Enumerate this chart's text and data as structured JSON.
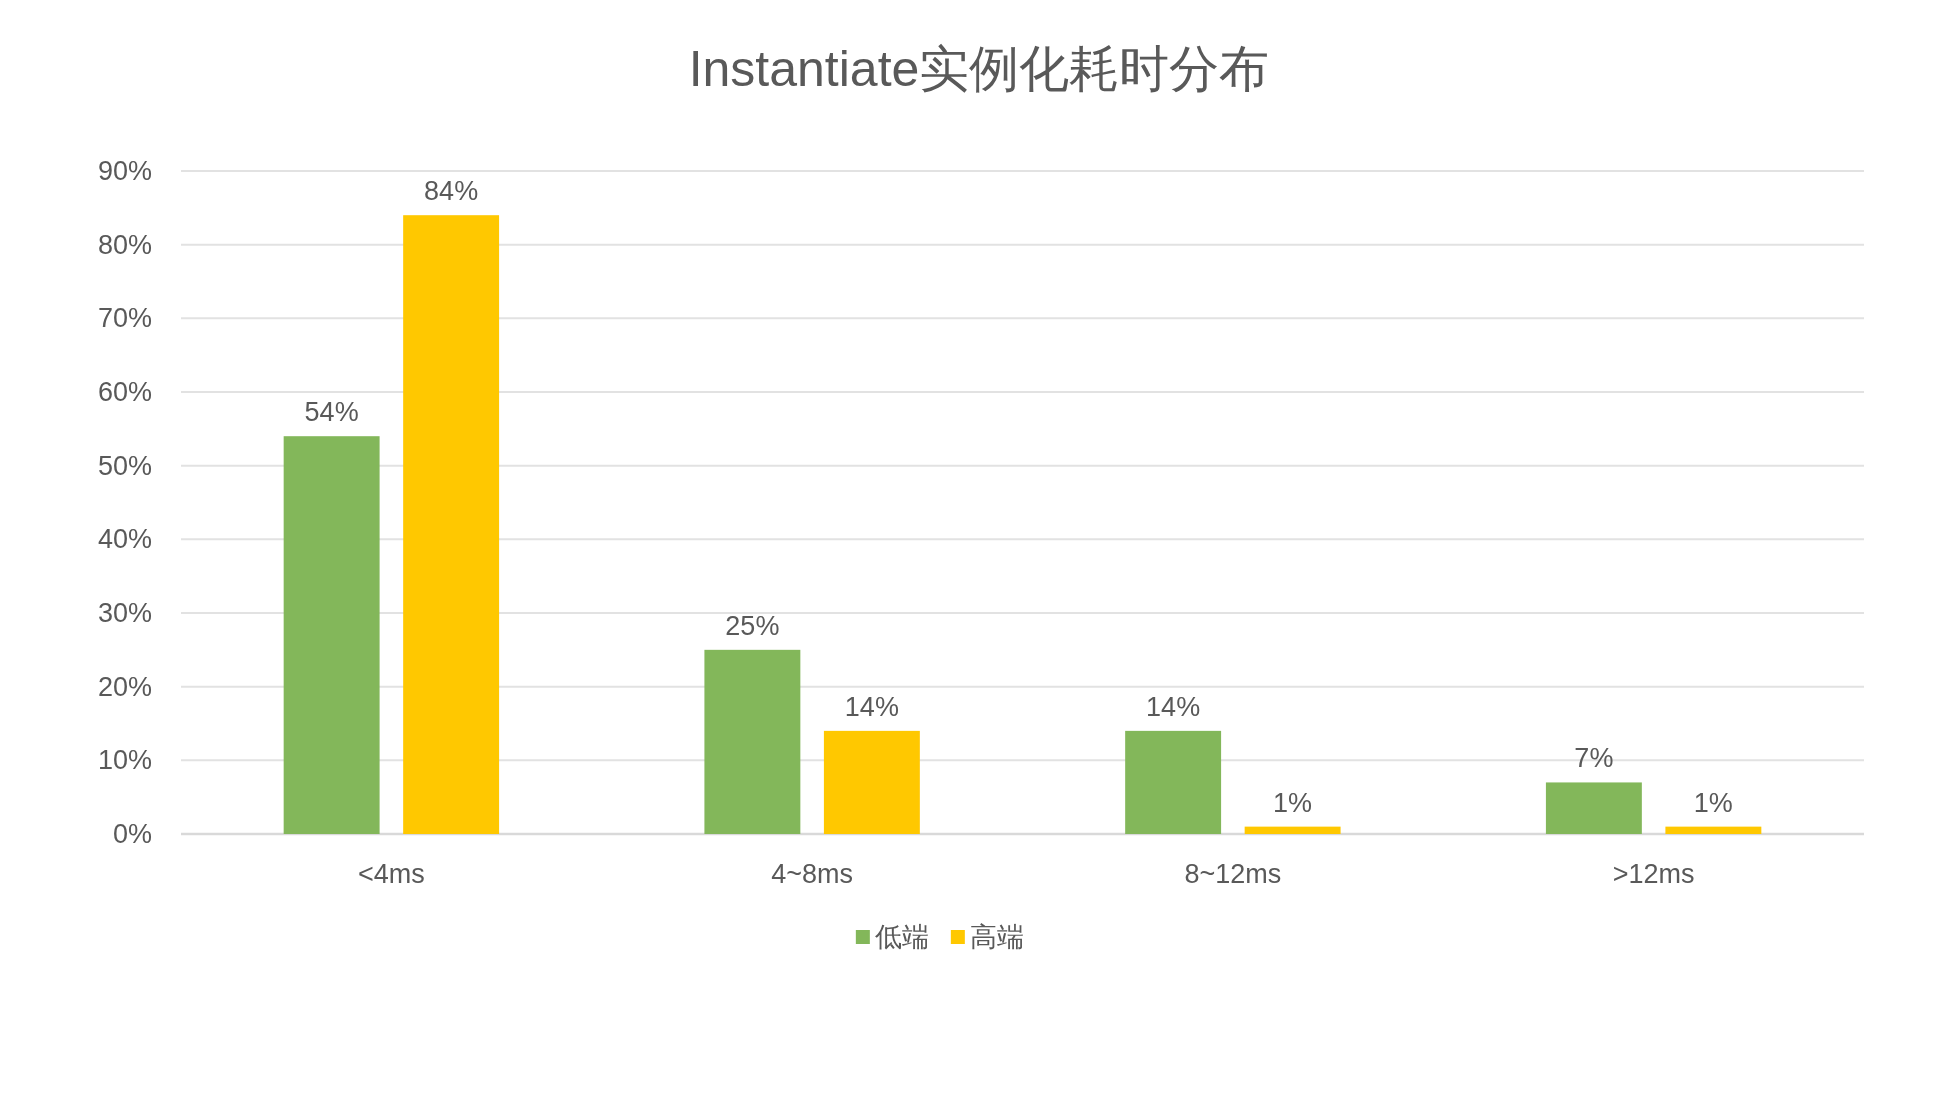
{
  "chart_data": {
    "type": "bar",
    "title": "Instantiate实例化耗时分布",
    "categories": [
      "<4ms",
      "4~8ms",
      "8~12ms",
      ">12ms"
    ],
    "series": [
      {
        "name": "低端",
        "color": "#83b75a",
        "values": [
          54,
          25,
          14,
          7
        ],
        "value_labels": [
          "54%",
          "25%",
          "14%",
          "7%"
        ]
      },
      {
        "name": "高端",
        "color": "#ffc800",
        "values": [
          84,
          14,
          1,
          1
        ],
        "value_labels": [
          "84%",
          "14%",
          "1%",
          "1%"
        ]
      }
    ],
    "ylim": [
      0,
      90
    ],
    "yticks": [
      {
        "value": 0,
        "label": "0%"
      },
      {
        "value": 10,
        "label": "10%"
      },
      {
        "value": 20,
        "label": "20%"
      },
      {
        "value": 30,
        "label": "30%"
      },
      {
        "value": 40,
        "label": "40%"
      },
      {
        "value": 50,
        "label": "50%"
      },
      {
        "value": 60,
        "label": "60%"
      },
      {
        "value": 70,
        "label": "70%"
      },
      {
        "value": 80,
        "label": "80%"
      },
      {
        "value": 90,
        "label": "90%"
      }
    ],
    "grid": "y",
    "legend": "bottom"
  }
}
